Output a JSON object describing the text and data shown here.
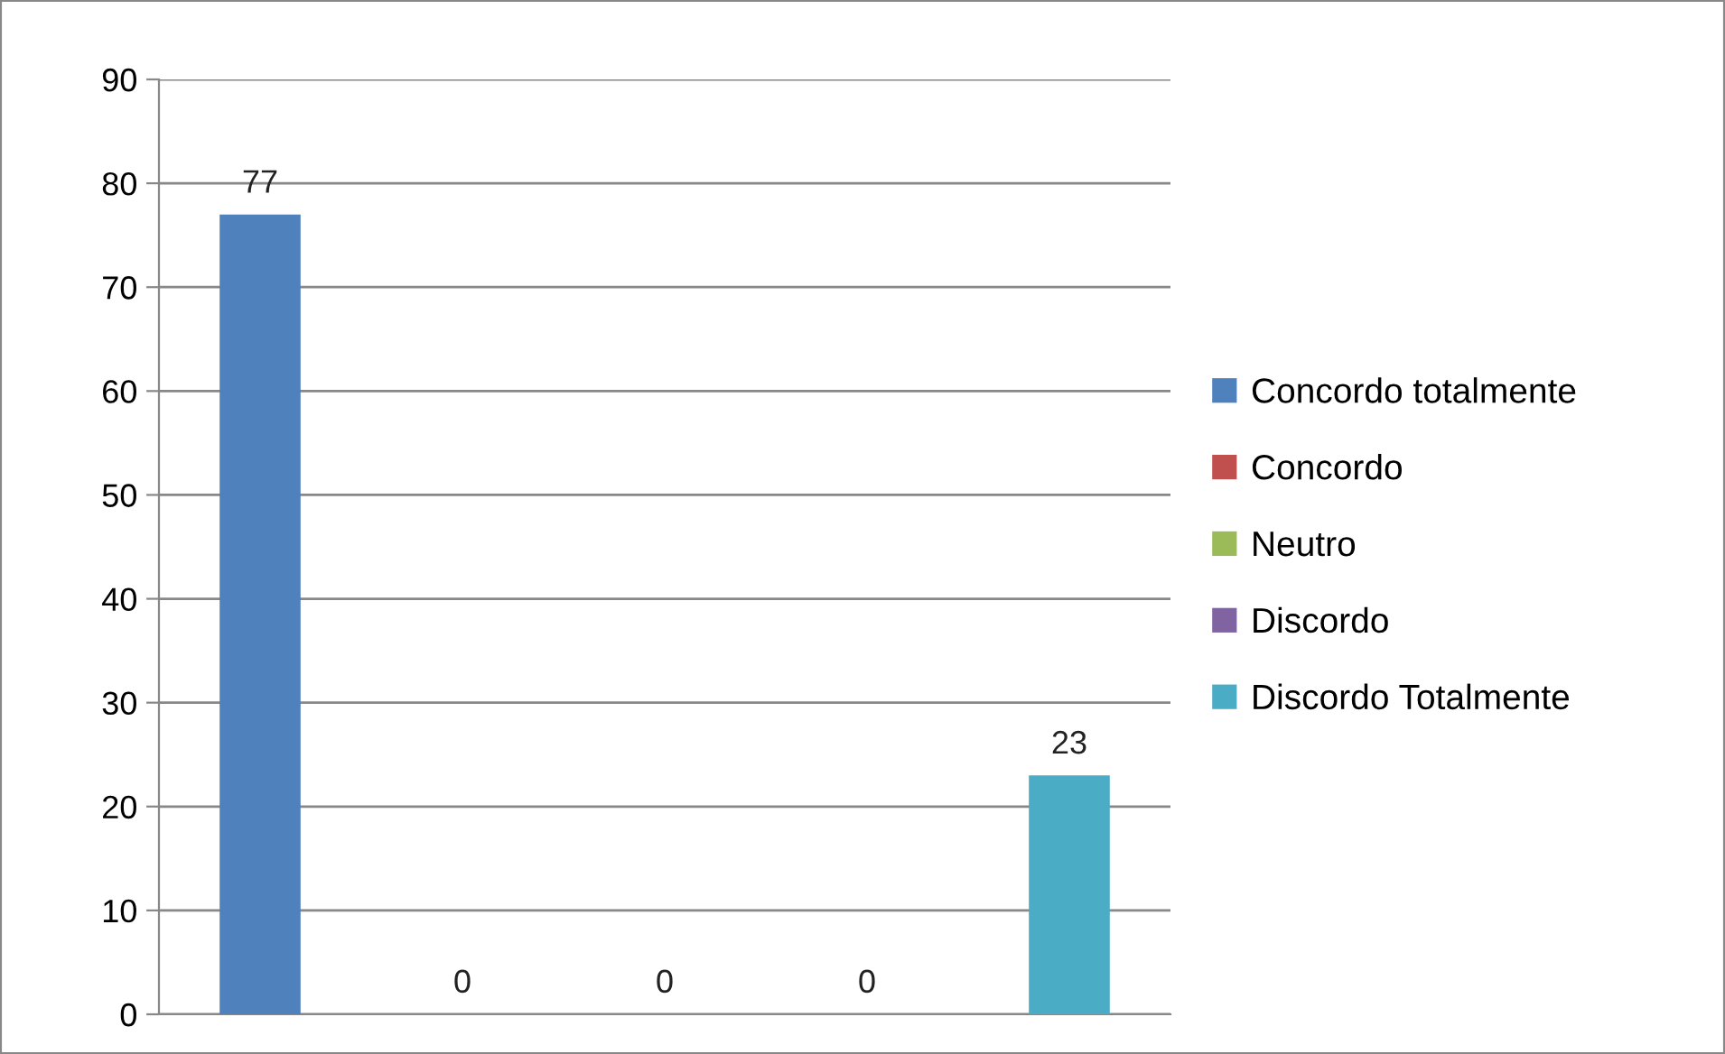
{
  "chart_data": {
    "type": "bar",
    "categories": [
      null,
      null,
      null,
      null,
      null
    ],
    "series": [
      {
        "name": "Concordo totalmente",
        "color": "#4f81bd",
        "values": [
          77,
          null,
          null,
          null,
          null
        ]
      },
      {
        "name": "Concordo",
        "color": "#c0504d",
        "values": [
          null,
          0,
          null,
          null,
          null
        ]
      },
      {
        "name": "Neutro",
        "color": "#9bbb59",
        "values": [
          null,
          null,
          0,
          null,
          null
        ]
      },
      {
        "name": "Discordo",
        "color": "#8064a2",
        "values": [
          null,
          null,
          null,
          0,
          null
        ]
      },
      {
        "name": "Discordo Totalmente",
        "color": "#4bacc6",
        "values": [
          null,
          null,
          null,
          null,
          23
        ]
      }
    ],
    "ylim": [
      0,
      90
    ],
    "yticks": [
      0,
      10,
      20,
      30,
      40,
      50,
      60,
      70,
      80,
      90
    ],
    "grid": "y",
    "legend": "right",
    "data_labels": true
  }
}
